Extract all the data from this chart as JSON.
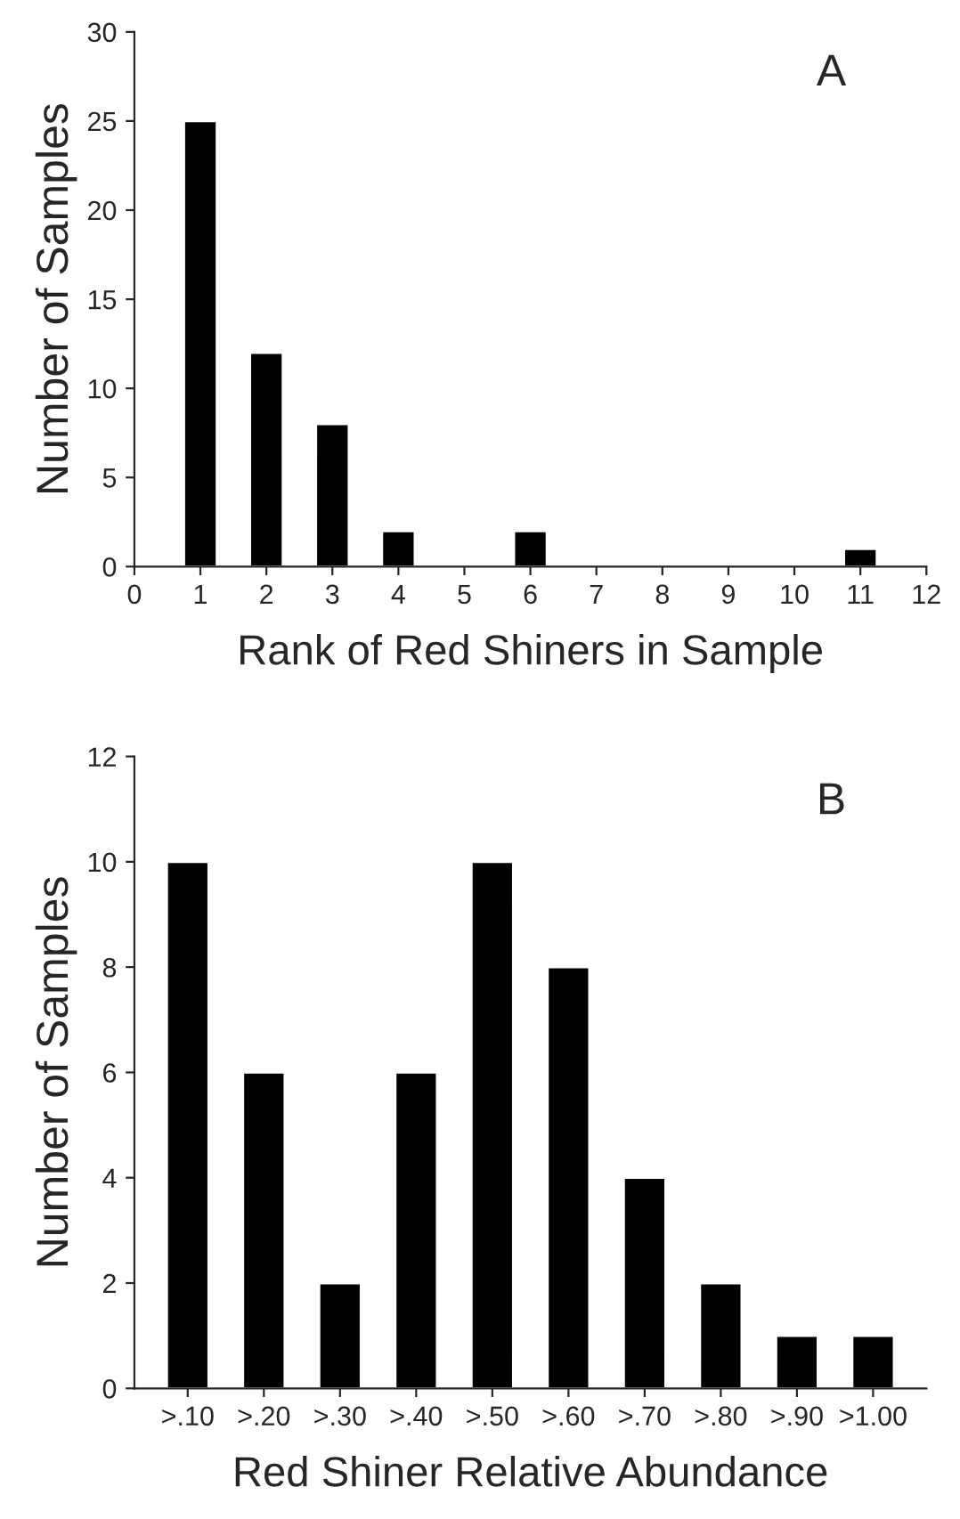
{
  "chart_data": [
    {
      "type": "bar",
      "xlabel": "Rank of Red Shiners in Sample",
      "ylabel": "Number of Samples",
      "annotations": [
        "A"
      ],
      "x": [
        1,
        2,
        3,
        4,
        6,
        11
      ],
      "values": [
        25,
        12,
        8,
        2,
        2,
        1
      ],
      "color": "#000000",
      "xlim": [
        0,
        12
      ],
      "xticks": [
        0,
        1,
        2,
        3,
        4,
        5,
        6,
        7,
        8,
        9,
        10,
        11,
        12
      ],
      "ylim": [
        0,
        30
      ],
      "yticks": [
        0,
        5,
        10,
        15,
        20,
        25,
        30
      ],
      "grid": false,
      "legend": false
    },
    {
      "type": "bar",
      "xlabel": "Red Shiner Relative Abundance",
      "ylabel": "Number of Samples",
      "annotations": [
        "B"
      ],
      "categories": [
        ">.10",
        ">.20",
        ">.30",
        ">.40",
        ">.50",
        ">.60",
        ">.70",
        ">.80",
        ">.90",
        ">1.00"
      ],
      "values": [
        10,
        6,
        2,
        6,
        10,
        8,
        4,
        2,
        1,
        1
      ],
      "color": "#000000",
      "ylim": [
        0,
        12
      ],
      "yticks": [
        0,
        2,
        4,
        6,
        8,
        10,
        12
      ],
      "grid": false,
      "legend": false
    }
  ]
}
